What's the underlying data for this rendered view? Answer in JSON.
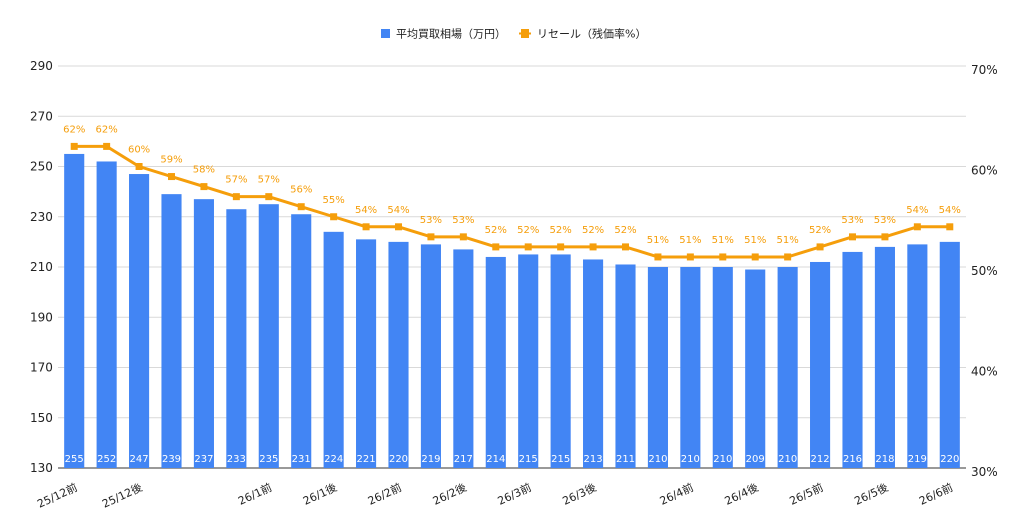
{
  "chart_data": {
    "type": "bar",
    "series": [
      {
        "name": "平均買取相場（万円）",
        "type": "bar",
        "color": "#4285f4",
        "axis": "left",
        "values": [
          255,
          252,
          247,
          239,
          237,
          233,
          235,
          231,
          224,
          221,
          220,
          219,
          217,
          214,
          215,
          215,
          213,
          211,
          210,
          210,
          210,
          209,
          210,
          212,
          216,
          218,
          219,
          220
        ],
        "labels": [
          "255",
          "252",
          "247",
          "239",
          "237",
          "233",
          "235",
          "231",
          "224",
          "221",
          "220",
          "219",
          "217",
          "214",
          "215",
          "215",
          "213",
          "211",
          "210",
          "210",
          "210",
          "209",
          "210",
          "212",
          "216",
          "218",
          "219",
          "220"
        ]
      },
      {
        "name": "リセール（残価率%）",
        "type": "line",
        "color": "#f59e0b",
        "axis": "right",
        "values": [
          62,
          62,
          60,
          59,
          58,
          57,
          57,
          56,
          55,
          54,
          54,
          53,
          53,
          52,
          52,
          52,
          52,
          52,
          51,
          51,
          51,
          51,
          51,
          52,
          53,
          53,
          54,
          54
        ],
        "labels": [
          "62%",
          "62%",
          "60%",
          "59%",
          "58%",
          "57%",
          "57%",
          "56%",
          "55%",
          "54%",
          "54%",
          "53%",
          "53%",
          "52%",
          "52%",
          "52%",
          "52%",
          "52%",
          "51%",
          "51%",
          "51%",
          "51%",
          "51%",
          "52%",
          "53%",
          "53%",
          "54%",
          "54%"
        ]
      }
    ],
    "x_tick_labels": [
      {
        "index": 0.5,
        "text": "25/12前"
      },
      {
        "index": 2.5,
        "text": "25/12後"
      },
      {
        "index": 6.5,
        "text": "26/1前"
      },
      {
        "index": 8.5,
        "text": "26/1後"
      },
      {
        "index": 10.5,
        "text": "26/2前"
      },
      {
        "index": 12.5,
        "text": "26/2後"
      },
      {
        "index": 14.5,
        "text": "26/3前"
      },
      {
        "index": 16.5,
        "text": "26/3後"
      },
      {
        "index": 19.5,
        "text": "26/4前"
      },
      {
        "index": 21.5,
        "text": "26/4後"
      },
      {
        "index": 23.5,
        "text": "26/5前"
      },
      {
        "index": 25.5,
        "text": "26/5後"
      },
      {
        "index": 27.5,
        "text": "26/6前"
      }
    ],
    "y_left": {
      "range": [
        130,
        290
      ],
      "ticks": [
        130,
        150,
        170,
        190,
        210,
        230,
        250,
        270,
        290
      ],
      "tick_labels": [
        "130",
        "150",
        "170",
        "190",
        "210",
        "230",
        "250",
        "270",
        "290"
      ]
    },
    "y_right": {
      "range": [
        30,
        70
      ],
      "ticks": [
        30,
        40,
        50,
        60,
        70
      ],
      "tick_labels": [
        "30%",
        "40%",
        "50%",
        "60%",
        "70%"
      ]
    },
    "grid": true,
    "legend_position": "top-center"
  }
}
